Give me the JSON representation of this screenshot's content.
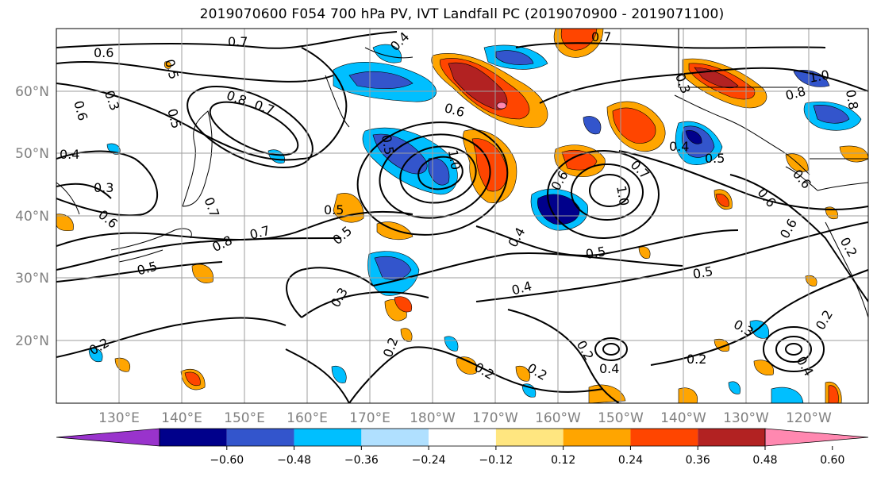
{
  "title": "2019070600 F054 700 hPa PV, IVT Landfall PC (2019070900 - 2019071100)",
  "lat_labels": [
    "60°N",
    "50°N",
    "40°N",
    "30°N",
    "20°N"
  ],
  "lon_labels": [
    "130°E",
    "140°E",
    "150°E",
    "160°E",
    "170°E",
    "180°W",
    "170°W",
    "160°W",
    "150°W",
    "140°W",
    "130°W",
    "120°W"
  ],
  "colorbar": {
    "ticks": [
      "−0.60",
      "−0.48",
      "−0.36",
      "−0.24",
      "−0.12",
      "0.12",
      "0.24",
      "0.36",
      "0.48",
      "0.60"
    ],
    "colors": [
      "#9933cc",
      "#00008b",
      "#3355cc",
      "#00bfff",
      "#b0e0ff",
      "#ffffff",
      "#ffe680",
      "#ffa500",
      "#ff4500",
      "#b22222",
      "#ff88b0"
    ]
  },
  "contour_labels": [
    "0.6",
    "0.7",
    "0.6",
    "0.5",
    "0.5",
    "0.8",
    "0.7",
    "0.3",
    "0.4",
    "0.3",
    "0.6",
    "0.5",
    "0.8",
    "0.7",
    "0.5",
    "0.5",
    "0.7",
    "0.6",
    "1.0",
    "0.4",
    "0.5",
    "0.4",
    "0.6",
    "0.7",
    "1.0",
    "0.7",
    "0.8",
    "1.0",
    "0.5",
    "0.4",
    "0.8",
    "0.3",
    "0.5",
    "0.5",
    "0.6",
    "0.6",
    "0.6",
    "0.3",
    "0.2",
    "0.4",
    "0.2",
    "0.2",
    "0.4",
    "0.2",
    "0.3",
    "0.2",
    "0.4",
    "0.2",
    "0.2",
    "0.2"
  ]
}
